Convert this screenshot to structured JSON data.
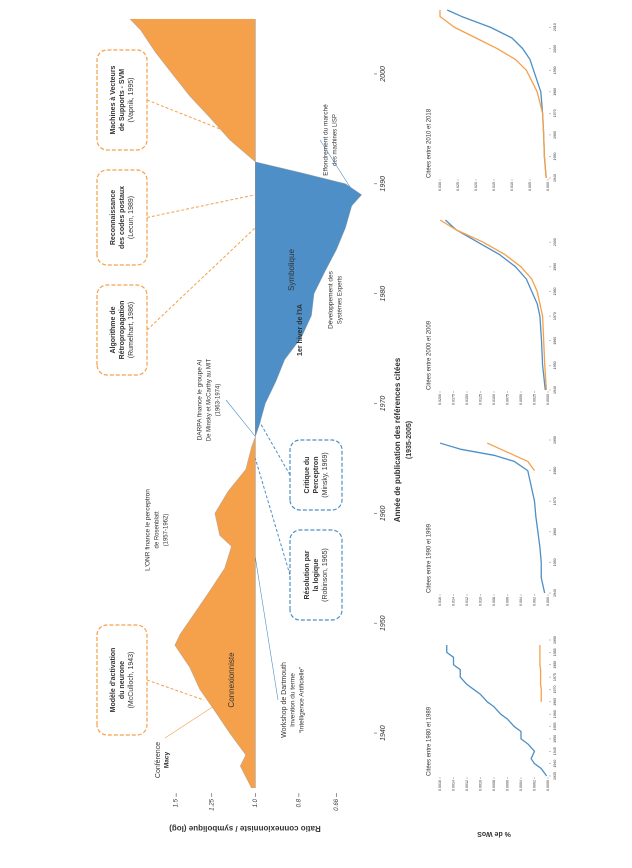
{
  "chart_data": [
    {
      "type": "area",
      "ylabel": "Ratio connexionniste / symbolique (log)",
      "xlabel": "Année de publication des références citées",
      "xlabel_note": "(1935-2005)",
      "yscale": "log",
      "baseline": 1,
      "color_above": "#f5a04a",
      "color_below": "#4d8fc6",
      "xlim": [
        1935,
        2005
      ],
      "xticks": [
        1940,
        1950,
        1960,
        1970,
        1980,
        1990,
        2000
      ],
      "ylim": [
        0.55,
        2
      ],
      "yticks": [
        0.66,
        0.8,
        {
          "value": 1,
          "label": "1.0"
        },
        1.25,
        1.5
      ],
      "x": [
        1935,
        1937,
        1938,
        1940,
        1942,
        1944,
        1946,
        1948,
        1949,
        1951,
        1953,
        1955,
        1957,
        1958,
        1960,
        1962,
        1964,
        1966,
        1968,
        1970,
        1972,
        1974,
        1976,
        1978,
        1980,
        1982,
        1984,
        1986,
        1988,
        1989,
        1990,
        1991,
        1992,
        1994,
        1996,
        1998,
        2000,
        2002,
        2004,
        2005
      ],
      "values": [
        1.02,
        1.08,
        1.05,
        1.14,
        1.23,
        1.33,
        1.4,
        1.51,
        1.47,
        1.36,
        1.26,
        1.17,
        1.13,
        1.2,
        1.23,
        1.15,
        1.05,
        1.02,
        0.98,
        0.95,
        0.9,
        0.86,
        0.79,
        0.75,
        0.74,
        0.7,
        0.66,
        0.63,
        0.61,
        0.58,
        0.63,
        0.79,
        1.0,
        1.14,
        1.26,
        1.4,
        1.53,
        1.67,
        1.8,
        1.9
      ],
      "area_labels": [
        "Connexionniste",
        "Symbolique"
      ],
      "boxes": [
        {
          "color": "#f5a04a",
          "lines": [
            "Modèle d'activation",
            "du neurone",
            "(McCulloch, 1943)"
          ]
        },
        {
          "color": "#f5a04a",
          "lines": [
            "Algorithme de",
            "Rétropropagation",
            "(Rumelhart, 1986)"
          ]
        },
        {
          "color": "#f5a04a",
          "lines": [
            "Reconnaissance",
            "des codes postaux",
            "(Lecun, 1989)"
          ]
        },
        {
          "color": "#f5a04a",
          "lines": [
            "Machines à Vecteurs",
            "de Supports - SVM",
            "(Vapnik, 1995)"
          ]
        },
        {
          "color": "#4d8fc6",
          "lines": [
            "Résolution par",
            "la logique",
            "(Robinson, 1965)"
          ]
        },
        {
          "color": "#4d8fc6",
          "lines": [
            "Critique du",
            "Perceptron",
            "(Minsky, 1969)"
          ]
        }
      ],
      "notes": [
        {
          "color": "#f5a04a",
          "lines": [
            "Conférence",
            "Macy"
          ]
        },
        {
          "color": "#4d8fc6",
          "lines": [
            "Workshop de Dartmouth",
            "Invention du terme",
            "“Intelligence Artificielle”"
          ]
        },
        {
          "color": "#f5a04a",
          "lines": [
            "L'ONR finance le perceptron",
            "de Rosenblatt",
            "(1957-1962)"
          ]
        },
        {
          "color": "#4d8fc6",
          "lines": [
            "DARPA finance le groupe AI",
            "De Minsky et McCarthy au MIT",
            "(1963-1974)"
          ]
        },
        {
          "color": "#4d8fc6",
          "lines": [
            "1er hiver de l'IA"
          ]
        },
        {
          "color": "#4d8fc6",
          "lines": [
            "Développement des",
            "Systèmes Experts"
          ]
        },
        {
          "color": "#4d8fc6",
          "lines": [
            "Effondrement du marché",
            "des machines LISP"
          ]
        }
      ]
    },
    {
      "type": "line",
      "title": "Citées entre 1980 et 1989",
      "ylabel": "% de WoS",
      "xlim": [
        1935,
        1990
      ],
      "xticks": [
        1935,
        1940,
        1945,
        1950,
        1955,
        1960,
        1965,
        1970,
        1975,
        1980,
        1985,
        1990
      ],
      "ylim": [
        0,
        0.0016
      ],
      "yticks": [
        {
          "value": 0,
          "label": "0.0000"
        },
        0.0002,
        0.0004,
        0.0006,
        0.0008,
        {
          "value": 0.001,
          "label": "0.0010"
        },
        0.0012,
        0.0014,
        0.0016
      ],
      "x": [
        1935,
        1938,
        1940,
        1942,
        1945,
        1948,
        1950,
        1953,
        1955,
        1958,
        1960,
        1963,
        1965,
        1968,
        1970,
        1972,
        1975,
        1978,
        1980,
        1983,
        1985,
        1988
      ],
      "series": [
        {
          "color": "#4d8fc6",
          "values": [
            2e-05,
            0.0001,
            0.0002,
            0.00025,
            0.0002,
            0.0003,
            0.0004,
            0.0004,
            0.0005,
            0.0006,
            0.0007,
            0.0008,
            0.0009,
            0.001,
            0.0011,
            0.0012,
            0.0013,
            0.0013,
            0.0014,
            0.0014,
            0.0015,
            0.0015
          ]
        },
        {
          "color": "#f5a04a",
          "values": [
            null,
            null,
            null,
            null,
            null,
            null,
            null,
            null,
            null,
            null,
            null,
            null,
            0.0001,
            0.0001,
            0.0001,
            0.00011,
            0.00011,
            0.00011,
            0.00012,
            0.00012,
            0.00012,
            0.00012
          ]
        }
      ]
    },
    {
      "type": "line",
      "title": "Citées entre 1990 et 1999",
      "xlim": [
        1940,
        1990
      ],
      "xticks": [
        1940,
        1950,
        1960,
        1970,
        1980,
        1990
      ],
      "ylim": [
        0,
        0.016
      ],
      "yticks": [
        {
          "value": 0,
          "label": "0.000"
        },
        0.002,
        0.004,
        0.006,
        0.008,
        {
          "value": 0.01,
          "label": "0.010"
        },
        0.012,
        0.014,
        0.016
      ],
      "x": [
        1940,
        1945,
        1950,
        1955,
        1960,
        1965,
        1970,
        1975,
        1980,
        1983,
        1985,
        1987,
        1989
      ],
      "series": [
        {
          "color": "#4d8fc6",
          "values": [
            0.0005,
            0.001,
            0.001,
            0.0012,
            0.0015,
            0.0018,
            0.002,
            0.0025,
            0.003,
            0.005,
            0.008,
            0.013,
            0.016
          ]
        },
        {
          "color": "#f5a04a",
          "values": [
            null,
            null,
            null,
            null,
            null,
            null,
            null,
            null,
            0.002,
            0.003,
            0.005,
            0.007,
            0.009
          ]
        }
      ]
    },
    {
      "type": "line",
      "title": "Citées entre 2000 et 2009",
      "xlim": [
        1940,
        2009
      ],
      "xticks": [
        1940,
        1950,
        1960,
        1970,
        1980,
        1990,
        2000
      ],
      "ylim": [
        0,
        0.02
      ],
      "yticks": [
        {
          "value": 0,
          "label": "0.0000"
        },
        0.0025,
        {
          "value": 0.005,
          "label": "0.0050"
        },
        0.0075,
        {
          "value": 0.01,
          "label": "0.0100"
        },
        0.0125,
        {
          "value": 0.015,
          "label": "0.0150"
        },
        0.0175,
        {
          "value": 0.02,
          "label": "0.0200"
        }
      ],
      "x": [
        1940,
        1950,
        1960,
        1970,
        1975,
        1980,
        1985,
        1990,
        1995,
        2000,
        2005,
        2009
      ],
      "series": [
        {
          "color": "#4d8fc6",
          "values": [
            0.0005,
            0.001,
            0.0012,
            0.0015,
            0.002,
            0.003,
            0.004,
            0.006,
            0.009,
            0.013,
            0.017,
            0.019
          ]
        },
        {
          "color": "#f5a04a",
          "values": [
            0.0003,
            0.0006,
            0.0008,
            0.001,
            0.0015,
            0.002,
            0.003,
            0.005,
            0.008,
            0.012,
            0.017,
            0.02
          ]
        }
      ]
    },
    {
      "type": "line",
      "title": "Citées entre 2010 et 2018",
      "xlim": [
        1940,
        2018
      ],
      "xticks": [
        1940,
        1950,
        1960,
        1970,
        1980,
        1990,
        2000,
        2010
      ],
      "ylim": [
        0,
        0.03
      ],
      "yticks": [
        {
          "value": 0,
          "label": "0.000"
        },
        0.005,
        {
          "value": 0.01,
          "label": "0.010"
        },
        0.015,
        {
          "value": 0.02,
          "label": "0.020"
        },
        0.025,
        {
          "value": 0.03,
          "label": "0.030"
        }
      ],
      "x": [
        1940,
        1950,
        1960,
        1970,
        1980,
        1990,
        1995,
        2000,
        2005,
        2010,
        2015,
        2018
      ],
      "series": [
        {
          "color": "#4d8fc6",
          "values": [
            0.0005,
            0.001,
            0.0012,
            0.0015,
            0.002,
            0.004,
            0.005,
            0.007,
            0.01,
            0.016,
            0.024,
            0.028
          ]
        },
        {
          "color": "#f5a04a",
          "values": [
            0.0005,
            0.001,
            0.0012,
            0.0015,
            0.003,
            0.006,
            0.009,
            0.014,
            0.02,
            0.026,
            0.03,
            0.03
          ]
        }
      ]
    }
  ]
}
